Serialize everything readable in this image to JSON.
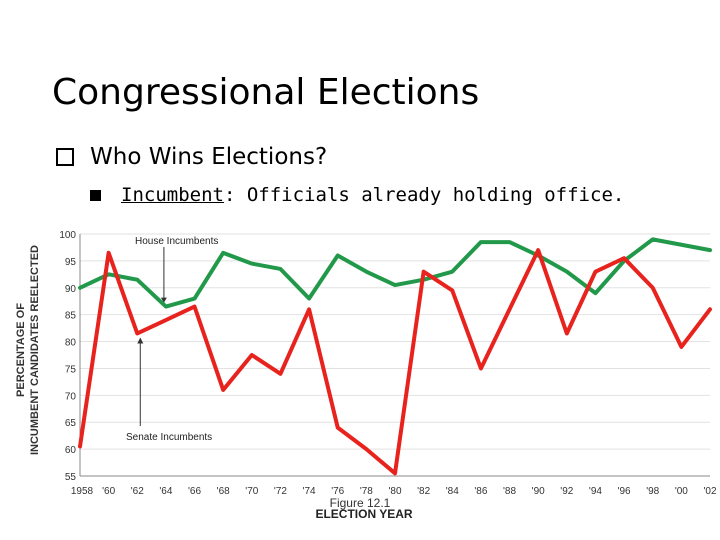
{
  "slide": {
    "title": "Congressional Elections",
    "bullet_main": "Who Wins Elections?",
    "bullet_sub_term": "Incumbent",
    "bullet_sub_rest": ": Officials already holding office."
  },
  "chart_data": {
    "type": "line",
    "categories": [
      "1958",
      "'60",
      "'62",
      "'64",
      "'66",
      "'68",
      "'70",
      "'72",
      "'74",
      "'76",
      "'78",
      "'80",
      "'82",
      "'84",
      "'86",
      "'88",
      "'90",
      "'92",
      "'94",
      "'96",
      "'98",
      "'00",
      "'02"
    ],
    "series": [
      {
        "name": "House Incumbents",
        "color": "#22994a",
        "values": [
          90,
          92.5,
          91.5,
          86.5,
          88,
          96.5,
          94.5,
          93.5,
          88,
          96,
          93,
          90.5,
          91.5,
          93,
          98.5,
          98.5,
          96,
          93,
          89,
          95,
          99,
          98,
          97
        ]
      },
      {
        "name": "Senate Incumbents",
        "color": "#e8231e",
        "values": [
          60.5,
          96.5,
          81.5,
          84,
          86.5,
          71,
          77.5,
          74,
          86,
          64,
          60,
          55.5,
          93,
          89.5,
          75,
          86,
          97,
          81.5,
          93,
          95.5,
          90,
          79,
          86
        ]
      }
    ],
    "ylim": [
      55,
      100
    ],
    "yticks": [
      55,
      60,
      65,
      70,
      75,
      80,
      85,
      90,
      95,
      100
    ],
    "ylabel_line1": "PERCENTAGE OF",
    "ylabel_line2": "INCUMBENT CANDIDATES REELECTED",
    "xlabel": "ELECTION YEAR",
    "figure_caption": "Figure 12.1",
    "annotations": {
      "house": "House Incumbents",
      "senate": "Senate Incumbents"
    }
  }
}
